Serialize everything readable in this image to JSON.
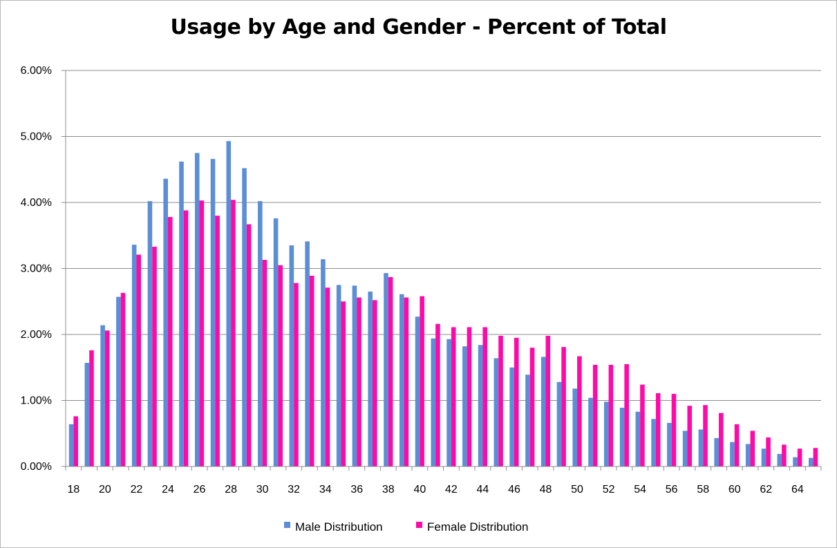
{
  "chart_data": {
    "type": "bar",
    "title": "Usage by Age and Gender - Percent of Total",
    "xlabel": "",
    "ylabel": "",
    "ylim": [
      0,
      6
    ],
    "y_ticks": [
      "0.00%",
      "1.00%",
      "2.00%",
      "3.00%",
      "4.00%",
      "5.00%",
      "6.00%"
    ],
    "grid": "horizontal",
    "legend_placement": "bottom",
    "categories": [
      "18",
      "19",
      "20",
      "21",
      "22",
      "23",
      "24",
      "25",
      "26",
      "27",
      "28",
      "29",
      "30",
      "31",
      "32",
      "33",
      "34",
      "35",
      "36",
      "37",
      "38",
      "39",
      "40",
      "41",
      "42",
      "43",
      "44",
      "45",
      "46",
      "47",
      "48",
      "49",
      "50",
      "51",
      "52",
      "53",
      "54",
      "55",
      "56",
      "57",
      "58",
      "59",
      "60",
      "61",
      "62",
      "63",
      "64",
      "65"
    ],
    "x_tick_labels": [
      "18",
      "",
      "20",
      "",
      "22",
      "",
      "24",
      "",
      "26",
      "",
      "28",
      "",
      "30",
      "",
      "32",
      "",
      "34",
      "",
      "36",
      "",
      "38",
      "",
      "40",
      "",
      "42",
      "",
      "44",
      "",
      "46",
      "",
      "48",
      "",
      "50",
      "",
      "52",
      "",
      "54",
      "",
      "56",
      "",
      "58",
      "",
      "60",
      "",
      "62",
      "",
      "64",
      ""
    ],
    "series": [
      {
        "name": "Male Distribution",
        "color": "#5b8ed6",
        "values": [
          0.64,
          1.57,
          2.14,
          2.57,
          3.36,
          4.02,
          4.36,
          4.62,
          4.75,
          4.66,
          4.93,
          4.52,
          4.02,
          3.76,
          3.35,
          3.41,
          3.14,
          2.75,
          2.74,
          2.65,
          2.93,
          2.61,
          2.27,
          1.94,
          1.93,
          1.82,
          1.84,
          1.64,
          1.5,
          1.39,
          1.66,
          1.28,
          1.18,
          1.04,
          0.98,
          0.89,
          0.83,
          0.72,
          0.66,
          0.54,
          0.56,
          0.43,
          0.37,
          0.34,
          0.27,
          0.19,
          0.14,
          0.13
        ]
      },
      {
        "name": "Female Distribution",
        "color": "#ff0aa8",
        "values": [
          0.76,
          1.76,
          2.06,
          2.63,
          3.21,
          3.33,
          3.78,
          3.88,
          4.03,
          3.8,
          4.04,
          3.67,
          3.13,
          3.05,
          2.78,
          2.89,
          2.71,
          2.5,
          2.56,
          2.52,
          2.87,
          2.56,
          2.58,
          2.16,
          2.11,
          2.11,
          2.11,
          1.98,
          1.95,
          1.8,
          1.98,
          1.81,
          1.67,
          1.54,
          1.54,
          1.55,
          1.24,
          1.11,
          1.1,
          0.92,
          0.93,
          0.81,
          0.64,
          0.54,
          0.44,
          0.33,
          0.27,
          0.28
        ]
      }
    ]
  }
}
